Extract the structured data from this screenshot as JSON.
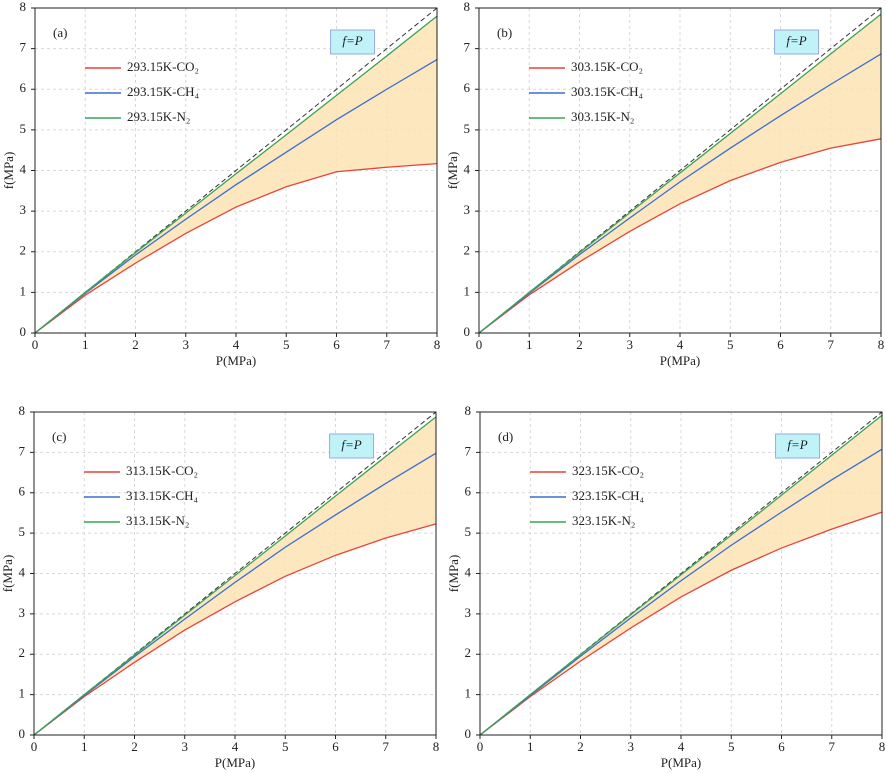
{
  "chart_data": [
    {
      "type": "line",
      "panel_label": "(a)",
      "x_label": "P(MPa)",
      "y_label": "f(MPa)",
      "annotation": "f=P",
      "x": [
        0,
        1,
        2,
        3,
        4,
        5,
        6,
        7,
        8
      ],
      "xlim": [
        0,
        8
      ],
      "ylim": [
        0,
        8
      ],
      "xticks": [
        0,
        1,
        2,
        3,
        4,
        5,
        6,
        7,
        8
      ],
      "yticks": [
        0,
        1,
        2,
        3,
        4,
        5,
        6,
        7,
        8
      ],
      "grid": true,
      "legend": "upper left",
      "series": [
        {
          "name": "293.15K-CO₂",
          "color": "#e8433a",
          "values": [
            0,
            0.93,
            1.72,
            2.45,
            3.1,
            3.6,
            3.97,
            4.08,
            4.17
          ]
        },
        {
          "name": "293.15K-CH₄",
          "color": "#3a6fd0",
          "values": [
            0,
            0.98,
            1.92,
            2.8,
            3.65,
            4.45,
            5.25,
            6.0,
            6.73
          ]
        },
        {
          "name": "293.15K-N₂",
          "color": "#3aa356",
          "values": [
            0,
            1.0,
            1.98,
            2.95,
            3.92,
            4.88,
            5.85,
            6.82,
            7.8
          ]
        }
      ]
    },
    {
      "type": "line",
      "panel_label": "(b)",
      "x_label": "P(MPa)",
      "y_label": "f(MPa)",
      "annotation": "f=P",
      "x": [
        0,
        1,
        2,
        3,
        4,
        5,
        6,
        7,
        8
      ],
      "xlim": [
        0,
        8
      ],
      "ylim": [
        0,
        8
      ],
      "xticks": [
        0,
        1,
        2,
        3,
        4,
        5,
        6,
        7,
        8
      ],
      "yticks": [
        0,
        1,
        2,
        3,
        4,
        5,
        6,
        7,
        8
      ],
      "grid": true,
      "legend": "upper left",
      "series": [
        {
          "name": "303.15K-CO₂",
          "color": "#e8433a",
          "values": [
            0,
            0.94,
            1.75,
            2.5,
            3.18,
            3.75,
            4.2,
            4.55,
            4.78
          ]
        },
        {
          "name": "303.15K-CH₄",
          "color": "#3a6fd0",
          "values": [
            0,
            0.98,
            1.93,
            2.83,
            3.72,
            4.55,
            5.35,
            6.12,
            6.87
          ]
        },
        {
          "name": "303.15K-N₂",
          "color": "#3aa356",
          "values": [
            0,
            1.0,
            1.98,
            2.96,
            3.94,
            4.91,
            5.89,
            6.87,
            7.85
          ]
        }
      ]
    },
    {
      "type": "line",
      "panel_label": "(c)",
      "x_label": "P(MPa)",
      "y_label": "f(MPa)",
      "annotation": "f=P",
      "x": [
        0,
        1,
        2,
        3,
        4,
        5,
        6,
        7,
        8
      ],
      "xlim": [
        0,
        8
      ],
      "ylim": [
        0,
        8
      ],
      "xticks": [
        0,
        1,
        2,
        3,
        4,
        5,
        6,
        7,
        8
      ],
      "yticks": [
        0,
        1,
        2,
        3,
        4,
        5,
        6,
        7,
        8
      ],
      "grid": true,
      "legend": "upper left",
      "series": [
        {
          "name": "313.15K-CO₂",
          "color": "#e8433a",
          "values": [
            0,
            0.95,
            1.8,
            2.6,
            3.3,
            3.93,
            4.45,
            4.88,
            5.23
          ]
        },
        {
          "name": "313.15K-CH₄",
          "color": "#3a6fd0",
          "values": [
            0,
            0.98,
            1.94,
            2.87,
            3.78,
            4.65,
            5.45,
            6.23,
            6.98
          ]
        },
        {
          "name": "313.15K-N₂",
          "color": "#3aa356",
          "values": [
            0,
            1.0,
            1.98,
            2.97,
            3.95,
            4.93,
            5.92,
            6.9,
            7.88
          ]
        }
      ]
    },
    {
      "type": "line",
      "panel_label": "(d)",
      "x_label": "P(MPa)",
      "y_label": "f(MPa)",
      "annotation": "f=P",
      "x": [
        0,
        1,
        2,
        3,
        4,
        5,
        6,
        7,
        8
      ],
      "xlim": [
        0,
        8
      ],
      "ylim": [
        0,
        8
      ],
      "xticks": [
        0,
        1,
        2,
        3,
        4,
        5,
        6,
        7,
        8
      ],
      "yticks": [
        0,
        1,
        2,
        3,
        4,
        5,
        6,
        7,
        8
      ],
      "grid": true,
      "legend": "upper left",
      "series": [
        {
          "name": "323.15K-CO₂",
          "color": "#e8433a",
          "values": [
            0,
            0.95,
            1.83,
            2.65,
            3.42,
            4.08,
            4.63,
            5.1,
            5.52
          ]
        },
        {
          "name": "323.15K-CH₄",
          "color": "#3a6fd0",
          "values": [
            0,
            0.98,
            1.95,
            2.9,
            3.82,
            4.7,
            5.52,
            6.32,
            7.08
          ]
        },
        {
          "name": "323.15K-N₂",
          "color": "#3aa356",
          "values": [
            0,
            1.0,
            1.99,
            2.98,
            3.97,
            4.95,
            5.94,
            6.93,
            7.92
          ]
        }
      ]
    }
  ]
}
